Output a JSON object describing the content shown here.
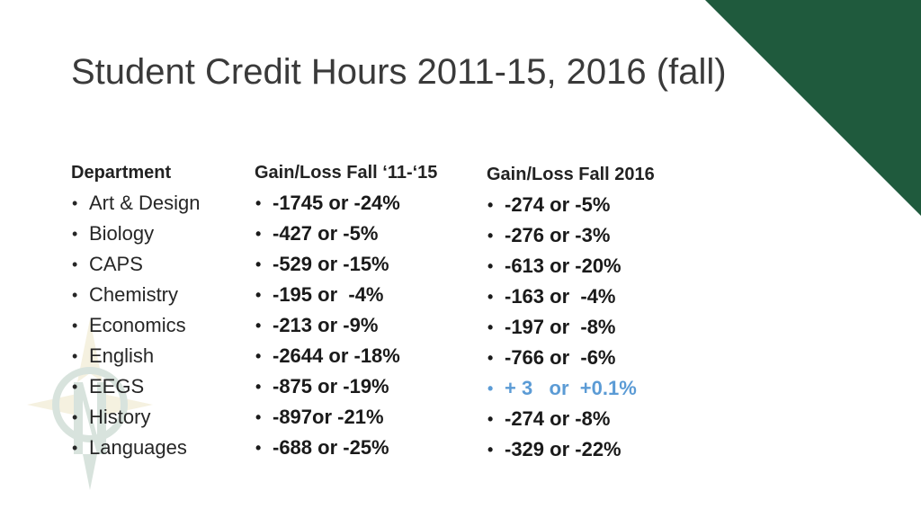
{
  "title": "Student Credit Hours 2011-15, 2016 (fall)",
  "colors": {
    "corner": "#1f5a3d",
    "highlight": "#5b9bd5"
  },
  "columns": {
    "department": {
      "header": "Department",
      "items": [
        "Art & Design",
        "Biology",
        "CAPS",
        "Chemistry",
        "Economics",
        "English",
        "EEGS",
        "History",
        "Languages"
      ]
    },
    "gain_loss_11_15": {
      "header": "Gain/Loss Fall ‘11-‘15",
      "items": [
        "-1745 or -24%",
        "-427 or -5%",
        "-529 or -15%",
        "-195 or  -4%",
        "-213 or -9%",
        "-2644 or -18%",
        "-875 or -19%",
        "-897or -21%",
        "-688 or -25%"
      ]
    },
    "gain_loss_2016": {
      "header": "Gain/Loss Fall 2016",
      "items": [
        "-274 or -5%",
        "-276 or -3%",
        "-613 or -20%",
        "-163 or  -4%",
        "-197 or  -8%",
        "-766 or  -6%",
        "+ 3   or  +0.1%",
        "-274 or -8%",
        "-329 or -22%"
      ]
    }
  },
  "bullet": "•"
}
